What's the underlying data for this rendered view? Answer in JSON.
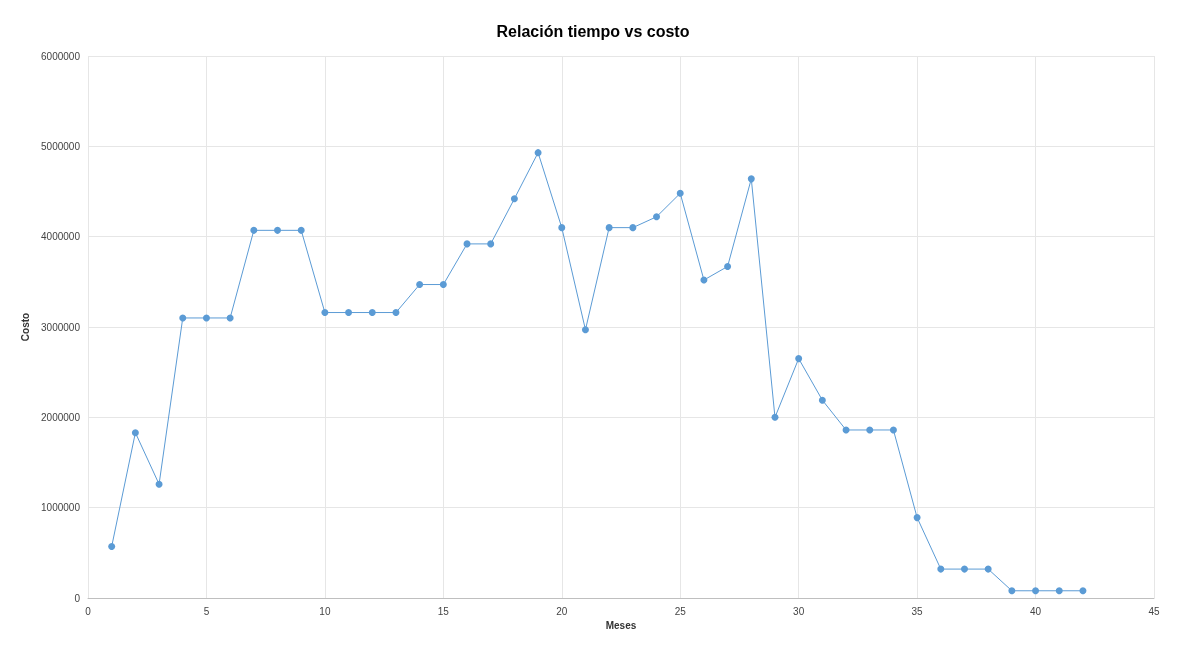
{
  "chart_data": {
    "type": "line",
    "title": "Relación tiempo vs costo",
    "xlabel": "Meses",
    "ylabel": "Costo",
    "x": [
      1,
      2,
      3,
      4,
      5,
      6,
      7,
      8,
      9,
      10,
      11,
      12,
      13,
      14,
      15,
      16,
      17,
      18,
      19,
      20,
      21,
      22,
      23,
      24,
      25,
      26,
      27,
      28,
      29,
      30,
      31,
      32,
      33,
      34,
      35,
      36,
      37,
      38,
      39,
      40,
      41,
      42
    ],
    "series": [
      {
        "color": "#5b9bd5",
        "values": [
          570000,
          1830000,
          1260000,
          3100000,
          3100000,
          3100000,
          4070000,
          4070000,
          4070000,
          3160000,
          3160000,
          3160000,
          3160000,
          3470000,
          3470000,
          3920000,
          3920000,
          4420000,
          4930000,
          4100000,
          2970000,
          4100000,
          4100000,
          4220000,
          4480000,
          3520000,
          3670000,
          4640000,
          2000000,
          2650000,
          2190000,
          1860000,
          1860000,
          1860000,
          890000,
          320000,
          320000,
          320000,
          80000,
          80000,
          80000,
          80000
        ]
      }
    ],
    "xlim": [
      0,
      45
    ],
    "xticks": [
      0,
      5,
      10,
      15,
      20,
      25,
      30,
      35,
      40,
      45
    ],
    "ylim": [
      0,
      6000000
    ],
    "yticks": [
      0,
      1000000,
      2000000,
      3000000,
      4000000,
      5000000,
      6000000
    ],
    "grid": true,
    "marker": "circle",
    "line_style": "solid"
  }
}
